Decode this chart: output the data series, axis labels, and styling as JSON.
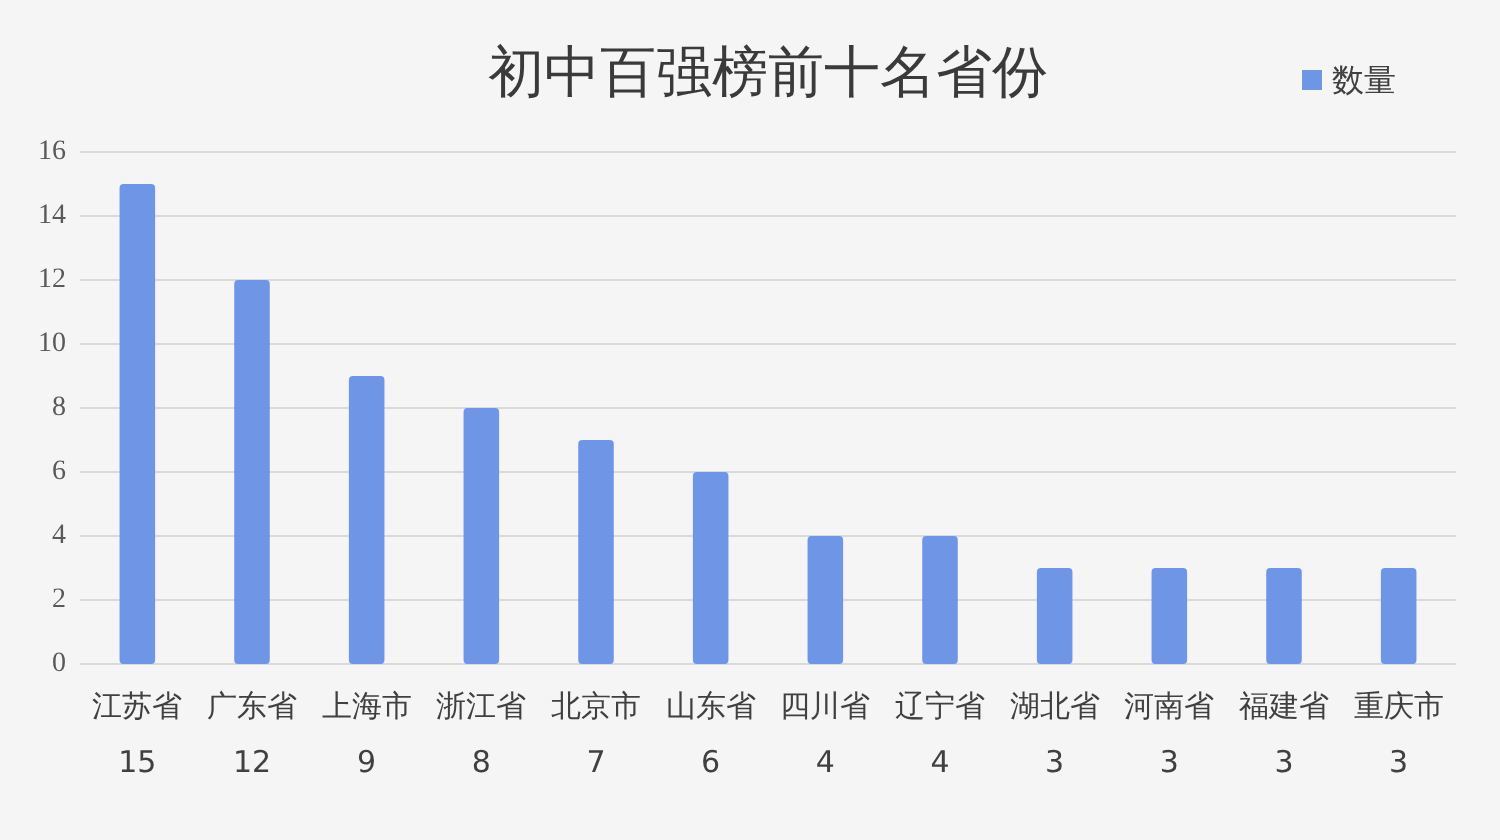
{
  "chart_data": {
    "type": "bar",
    "title": "初中百强榜前十名省份",
    "categories": [
      "江苏省",
      "广东省",
      "上海市",
      "浙江省",
      "北京市",
      "山东省",
      "四川省",
      "辽宁省",
      "湖北省",
      "河南省",
      "福建省",
      "重庆市"
    ],
    "series": [
      {
        "name": "数量",
        "color": "#6f95e7",
        "values": [
          15,
          12,
          9,
          8,
          7,
          6,
          4,
          4,
          3,
          3,
          3,
          3
        ]
      }
    ],
    "ylim": [
      0,
      16
    ],
    "yticks": [
      0,
      2,
      4,
      6,
      8,
      10,
      12,
      14,
      16
    ],
    "grid": "y",
    "legend": "top right",
    "data_labels": true
  }
}
